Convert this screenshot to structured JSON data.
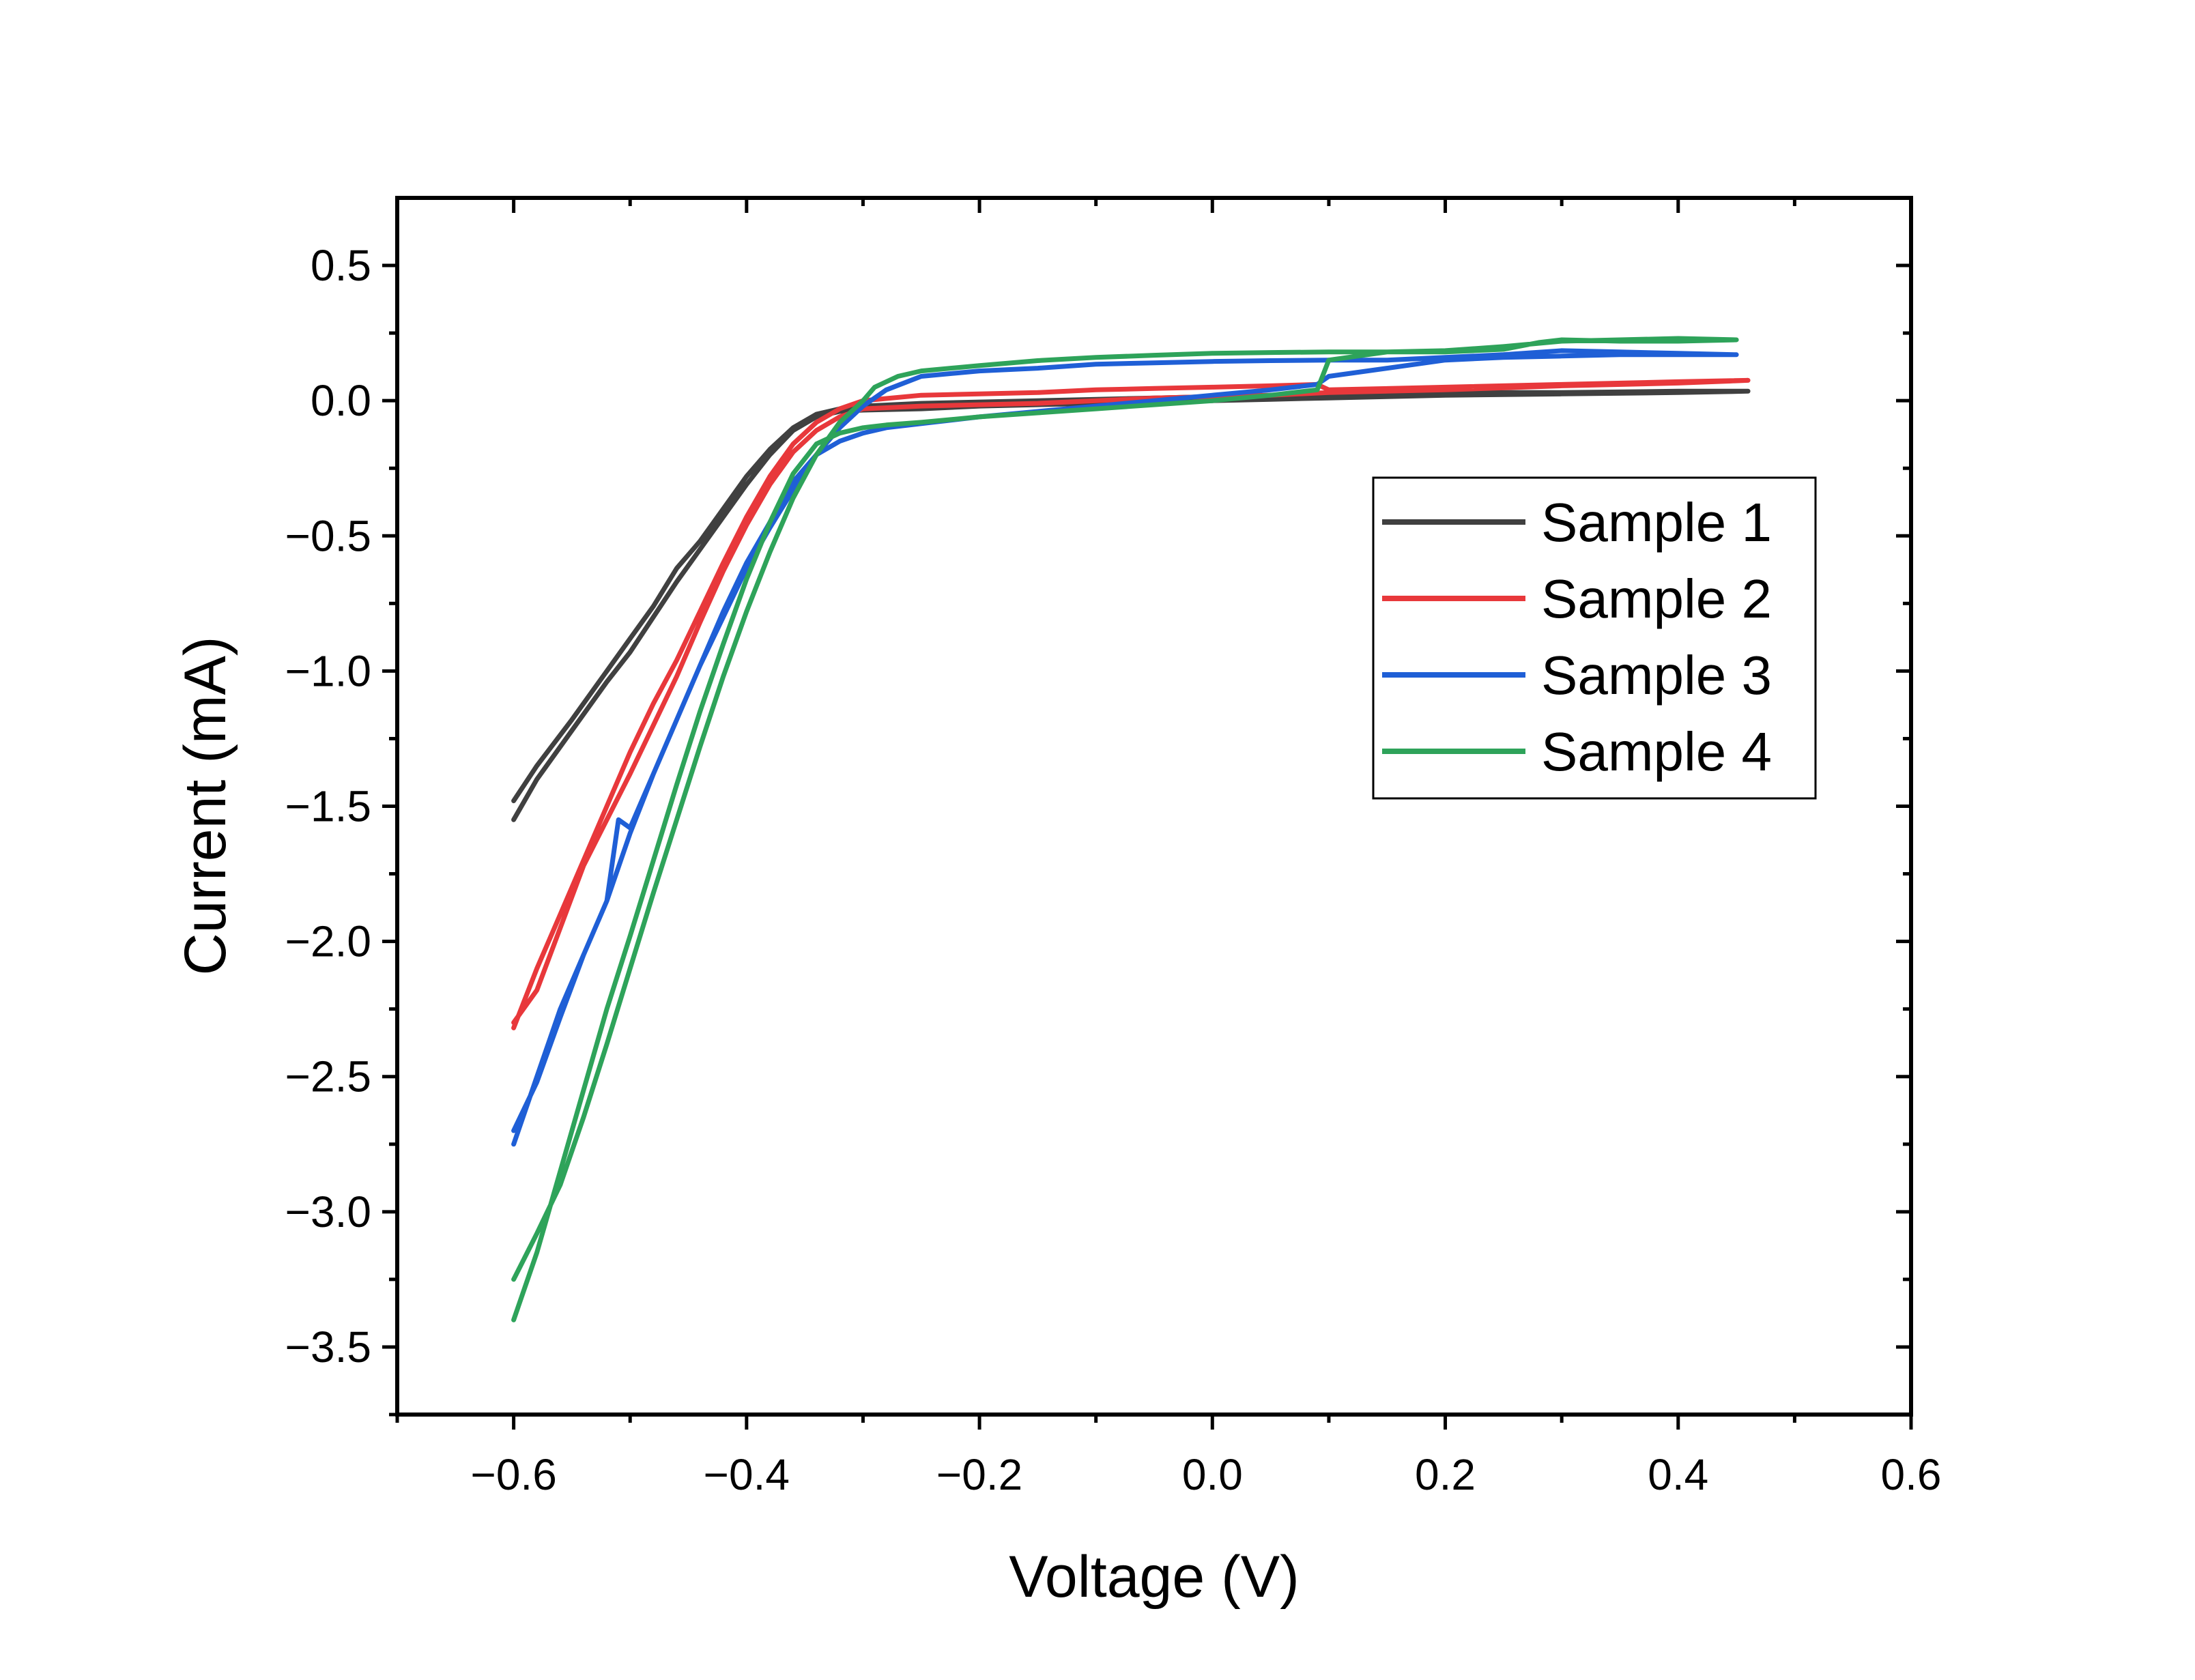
{
  "chart_data": {
    "type": "line",
    "title": "",
    "xlabel": "Voltage (V)",
    "ylabel": "Current (mA)",
    "xlim": [
      -0.7,
      0.6
    ],
    "ylim": [
      -3.75,
      0.75
    ],
    "xticks": [
      -0.6,
      -0.4,
      -0.2,
      0.0,
      0.2,
      0.4,
      0.6
    ],
    "xtick_labels": [
      "−0.6",
      "−0.4",
      "−0.2",
      "0.0",
      "0.2",
      "0.4",
      "0.6"
    ],
    "yticks": [
      0.5,
      0.0,
      -0.5,
      -1.0,
      -1.5,
      -2.0,
      -2.5,
      -3.0,
      -3.5
    ],
    "ytick_labels": [
      "0.5",
      "0.0",
      "−0.5",
      "−1.0",
      "−1.5",
      "−2.0",
      "−2.5",
      "−3.0",
      "−3.5"
    ],
    "grid": false,
    "legend_position": "right",
    "series": [
      {
        "name": "Sample 1",
        "color": "#404040",
        "x": [
          -0.6,
          -0.58,
          -0.55,
          -0.52,
          -0.5,
          -0.48,
          -0.46,
          -0.44,
          -0.42,
          -0.4,
          -0.38,
          -0.36,
          -0.34,
          -0.32,
          -0.3,
          -0.25,
          -0.2,
          -0.15,
          -0.1,
          -0.05,
          0.0,
          0.05,
          0.1,
          0.15,
          0.2,
          0.3,
          0.4,
          0.46,
          0.4,
          0.3,
          0.2,
          0.1,
          0.05,
          0.0,
          -0.05,
          -0.1,
          -0.15,
          -0.2,
          -0.25,
          -0.3,
          -0.32,
          -0.34,
          -0.36,
          -0.38,
          -0.4,
          -0.42,
          -0.44,
          -0.46,
          -0.48,
          -0.5,
          -0.52,
          -0.55,
          -0.58,
          -0.6
        ],
        "y": [
          -1.55,
          -1.4,
          -1.22,
          -1.04,
          -0.93,
          -0.8,
          -0.67,
          -0.55,
          -0.43,
          -0.31,
          -0.2,
          -0.11,
          -0.06,
          -0.04,
          -0.035,
          -0.03,
          -0.02,
          -0.015,
          -0.01,
          0.0,
          0.0,
          0.005,
          0.01,
          0.015,
          0.02,
          0.025,
          0.03,
          0.035,
          0.035,
          0.03,
          0.03,
          0.025,
          0.02,
          0.015,
          0.01,
          0.005,
          0.0,
          -0.005,
          -0.01,
          -0.02,
          -0.03,
          -0.05,
          -0.1,
          -0.18,
          -0.28,
          -0.4,
          -0.52,
          -0.62,
          -0.76,
          -0.88,
          -1.0,
          -1.18,
          -1.35,
          -1.48
        ]
      },
      {
        "name": "Sample 2",
        "color": "#e8383b",
        "x": [
          -0.6,
          -0.58,
          -0.56,
          -0.54,
          -0.52,
          -0.5,
          -0.48,
          -0.46,
          -0.44,
          -0.42,
          -0.4,
          -0.38,
          -0.36,
          -0.34,
          -0.32,
          -0.3,
          -0.25,
          -0.2,
          -0.15,
          -0.1,
          -0.05,
          0.0,
          0.05,
          0.1,
          0.2,
          0.3,
          0.4,
          0.46,
          0.4,
          0.3,
          0.2,
          0.1,
          0.09,
          0.05,
          0.0,
          -0.05,
          -0.1,
          -0.15,
          -0.2,
          -0.25,
          -0.3,
          -0.32,
          -0.34,
          -0.36,
          -0.38,
          -0.4,
          -0.42,
          -0.44,
          -0.46,
          -0.48,
          -0.5,
          -0.52,
          -0.54,
          -0.56,
          -0.58,
          -0.6
        ],
        "y": [
          -2.3,
          -2.18,
          -1.95,
          -1.72,
          -1.55,
          -1.38,
          -1.2,
          -1.02,
          -0.82,
          -0.63,
          -0.46,
          -0.31,
          -0.19,
          -0.11,
          -0.06,
          -0.03,
          -0.02,
          -0.015,
          -0.01,
          0.0,
          0.01,
          0.015,
          0.02,
          0.03,
          0.04,
          0.055,
          0.065,
          0.075,
          0.07,
          0.06,
          0.05,
          0.04,
          0.06,
          0.055,
          0.05,
          0.045,
          0.04,
          0.03,
          0.025,
          0.02,
          0.0,
          -0.03,
          -0.08,
          -0.16,
          -0.28,
          -0.43,
          -0.6,
          -0.78,
          -0.96,
          -1.12,
          -1.3,
          -1.5,
          -1.7,
          -1.9,
          -2.1,
          -2.32
        ]
      },
      {
        "name": "Sample 3",
        "color": "#1f5fd6",
        "x": [
          -0.6,
          -0.58,
          -0.56,
          -0.54,
          -0.52,
          -0.51,
          -0.5,
          -0.48,
          -0.46,
          -0.44,
          -0.42,
          -0.4,
          -0.38,
          -0.36,
          -0.34,
          -0.32,
          -0.3,
          -0.28,
          -0.25,
          -0.2,
          -0.15,
          -0.1,
          -0.05,
          0.0,
          0.05,
          0.09,
          0.1,
          0.15,
          0.2,
          0.25,
          0.3,
          0.35,
          0.4,
          0.45,
          0.4,
          0.35,
          0.3,
          0.25,
          0.2,
          0.15,
          0.1,
          0.05,
          0.0,
          -0.05,
          -0.1,
          -0.15,
          -0.2,
          -0.25,
          -0.28,
          -0.3,
          -0.32,
          -0.34,
          -0.36,
          -0.38,
          -0.4,
          -0.42,
          -0.44,
          -0.46,
          -0.48,
          -0.5,
          -0.52,
          -0.54,
          -0.56,
          -0.58,
          -0.6
        ],
        "y": [
          -2.75,
          -2.5,
          -2.25,
          -2.05,
          -1.85,
          -1.55,
          -1.58,
          -1.38,
          -1.18,
          -0.98,
          -0.78,
          -0.6,
          -0.45,
          -0.3,
          -0.2,
          -0.15,
          -0.12,
          -0.1,
          -0.085,
          -0.06,
          -0.04,
          -0.02,
          0.0,
          0.02,
          0.04,
          0.06,
          0.09,
          0.12,
          0.15,
          0.16,
          0.165,
          0.17,
          0.17,
          0.17,
          0.175,
          0.18,
          0.185,
          0.17,
          0.16,
          0.15,
          0.15,
          0.148,
          0.145,
          0.14,
          0.135,
          0.12,
          0.11,
          0.09,
          0.04,
          -0.02,
          -0.1,
          -0.2,
          -0.33,
          -0.47,
          -0.62,
          -0.8,
          -0.98,
          -1.18,
          -1.38,
          -1.6,
          -1.85,
          -2.05,
          -2.28,
          -2.52,
          -2.7
        ]
      },
      {
        "name": "Sample 4",
        "color": "#2ea35a",
        "x": [
          -0.6,
          -0.58,
          -0.56,
          -0.54,
          -0.52,
          -0.5,
          -0.48,
          -0.46,
          -0.44,
          -0.42,
          -0.4,
          -0.38,
          -0.36,
          -0.34,
          -0.32,
          -0.3,
          -0.28,
          -0.25,
          -0.2,
          -0.15,
          -0.1,
          -0.05,
          0.0,
          0.05,
          0.09,
          0.1,
          0.15,
          0.2,
          0.25,
          0.28,
          0.3,
          0.35,
          0.4,
          0.45,
          0.4,
          0.35,
          0.3,
          0.25,
          0.2,
          0.15,
          0.1,
          0.05,
          0.0,
          -0.05,
          -0.1,
          -0.15,
          -0.2,
          -0.25,
          -0.27,
          -0.29,
          -0.3,
          -0.32,
          -0.34,
          -0.36,
          -0.38,
          -0.4,
          -0.42,
          -0.44,
          -0.46,
          -0.48,
          -0.5,
          -0.52,
          -0.54,
          -0.56,
          -0.58,
          -0.6
        ],
        "y": [
          -3.4,
          -3.15,
          -2.85,
          -2.55,
          -2.25,
          -1.98,
          -1.7,
          -1.42,
          -1.15,
          -0.9,
          -0.66,
          -0.45,
          -0.27,
          -0.16,
          -0.12,
          -0.1,
          -0.09,
          -0.08,
          -0.06,
          -0.045,
          -0.03,
          -0.015,
          0.0,
          0.02,
          0.04,
          0.15,
          0.18,
          0.18,
          0.19,
          0.215,
          0.225,
          0.22,
          0.22,
          0.225,
          0.23,
          0.225,
          0.22,
          0.2,
          0.185,
          0.18,
          0.18,
          0.178,
          0.175,
          0.168,
          0.16,
          0.148,
          0.13,
          0.11,
          0.09,
          0.05,
          0.0,
          -0.08,
          -0.2,
          -0.36,
          -0.56,
          -0.78,
          -1.02,
          -1.28,
          -1.55,
          -1.82,
          -2.1,
          -2.38,
          -2.65,
          -2.9,
          -3.08,
          -3.25
        ]
      }
    ]
  }
}
